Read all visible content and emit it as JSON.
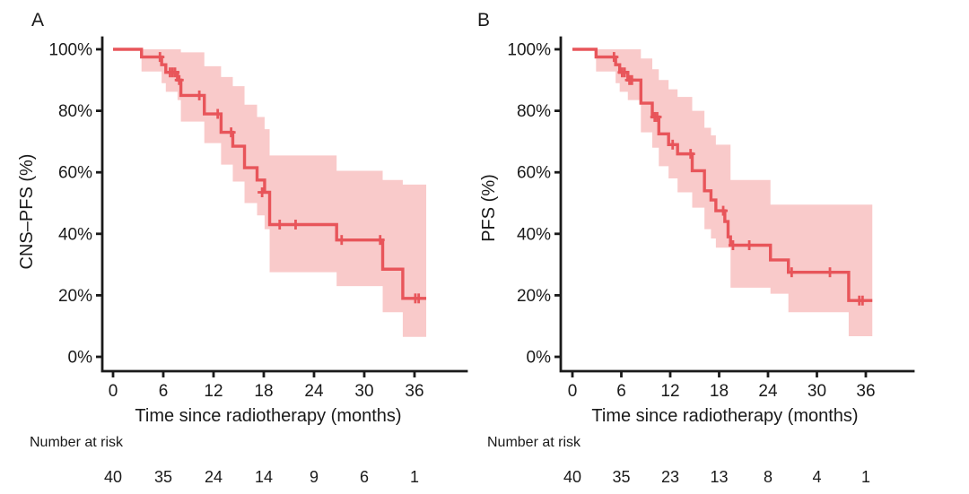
{
  "figure": {
    "background": "#ffffff",
    "text_color": "#1a1a1a",
    "axis_color": "#1a1a1a",
    "curve_color": "#e8555a",
    "band_color": "#f9caca"
  },
  "chart_data": [
    {
      "type": "line",
      "subtype": "kaplan_meier_step_with_ci_band",
      "panel": "A",
      "ylabel": "CNS–PFS (%)",
      "xlabel": "Time since radiotherapy (months)",
      "xticks": [
        0,
        6,
        12,
        18,
        24,
        30,
        36
      ],
      "yticks": [
        0,
        20,
        40,
        60,
        80,
        100
      ],
      "ytick_suffix": "%",
      "xlim": [
        0,
        42
      ],
      "ylim": [
        0,
        100
      ],
      "grid": false,
      "legend": false,
      "series": [
        {
          "name": "CNS-PFS",
          "steps": [
            [
              0,
              100
            ],
            [
              3.4,
              97.5
            ],
            [
              5.8,
              95
            ],
            [
              6.3,
              92.5
            ],
            [
              7.7,
              90
            ],
            [
              8.1,
              85
            ],
            [
              10.9,
              79
            ],
            [
              12.9,
              73
            ],
            [
              14.3,
              68.5
            ],
            [
              15.7,
              61.5
            ],
            [
              17.2,
              57.5
            ],
            [
              18.1,
              53.5
            ],
            [
              18.7,
              43
            ],
            [
              26.7,
              38
            ],
            [
              32.2,
              28.5
            ],
            [
              34.6,
              19
            ]
          ],
          "end_time": 37.4,
          "censors": [
            [
              5.6,
              97.5
            ],
            [
              6.8,
              92.5
            ],
            [
              7.1,
              92.5
            ],
            [
              7.4,
              92.5
            ],
            [
              7.9,
              90
            ],
            [
              10.3,
              85
            ],
            [
              12.5,
              79
            ],
            [
              14.1,
              73
            ],
            [
              17.8,
              53.5
            ],
            [
              19.9,
              43
            ],
            [
              21.8,
              43
            ],
            [
              27.3,
              38
            ],
            [
              31.9,
              38
            ],
            [
              36.1,
              19
            ],
            [
              36.5,
              19
            ]
          ],
          "ci_band": [
            [
              3.4,
              100,
              92.8
            ],
            [
              5.8,
              100,
              89
            ],
            [
              6.3,
              100,
              86.2
            ],
            [
              7.7,
              100,
              83.5
            ],
            [
              8.1,
              99,
              76.5
            ],
            [
              10.9,
              94.5,
              69.5
            ],
            [
              12.9,
              91,
              62.5
            ],
            [
              14.3,
              88,
              57
            ],
            [
              15.7,
              82,
              50
            ],
            [
              17.2,
              78,
              46
            ],
            [
              18.1,
              74,
              41.5
            ],
            [
              18.7,
              65.5,
              27.5
            ],
            [
              26.7,
              60.5,
              23
            ],
            [
              32.2,
              57.5,
              14.5
            ],
            [
              34.6,
              56,
              6.5
            ]
          ]
        }
      ],
      "number_at_risk": {
        "label": "Number at risk",
        "times": [
          0,
          6,
          12,
          18,
          24,
          30,
          36
        ],
        "counts": [
          40,
          35,
          24,
          14,
          9,
          6,
          1
        ]
      }
    },
    {
      "type": "line",
      "subtype": "kaplan_meier_step_with_ci_band",
      "panel": "B",
      "ylabel": "PFS (%)",
      "xlabel": "Time since radiotherapy (months)",
      "xticks": [
        0,
        6,
        12,
        18,
        24,
        30,
        36
      ],
      "yticks": [
        0,
        20,
        40,
        60,
        80,
        100
      ],
      "ytick_suffix": "%",
      "xlim": [
        0,
        42
      ],
      "ylim": [
        0,
        100
      ],
      "grid": false,
      "legend": false,
      "series": [
        {
          "name": "PFS",
          "steps": [
            [
              0,
              100
            ],
            [
              2.9,
              97.5
            ],
            [
              5.3,
              95
            ],
            [
              5.8,
              92.5
            ],
            [
              6.8,
              90
            ],
            [
              8.4,
              82.5
            ],
            [
              9.8,
              78
            ],
            [
              10.6,
              72.5
            ],
            [
              11.8,
              69
            ],
            [
              12.9,
              66
            ],
            [
              14.7,
              60.5
            ],
            [
              16.2,
              54
            ],
            [
              17,
              51
            ],
            [
              17.6,
              47.5
            ],
            [
              18.7,
              44
            ],
            [
              19.1,
              39
            ],
            [
              19.4,
              36.3
            ],
            [
              24.3,
              31.5
            ],
            [
              26.5,
              27.5
            ],
            [
              33.9,
              18.3
            ]
          ],
          "end_time": 36.8,
          "censors": [
            [
              5.1,
              97.5
            ],
            [
              6.1,
              92.5
            ],
            [
              6.4,
              92.5
            ],
            [
              7,
              90
            ],
            [
              7.3,
              90
            ],
            [
              10.1,
              78
            ],
            [
              10.4,
              78
            ],
            [
              12.3,
              69
            ],
            [
              14.5,
              66
            ],
            [
              18.5,
              47.5
            ],
            [
              19.7,
              36.3
            ],
            [
              21.7,
              36.3
            ],
            [
              26.9,
              27.5
            ],
            [
              31.6,
              27.5
            ],
            [
              35.2,
              18.3
            ],
            [
              35.6,
              18.3
            ]
          ],
          "ci_band": [
            [
              2.9,
              100,
              92.8
            ],
            [
              5.3,
              100,
              89
            ],
            [
              5.8,
              100,
              86.2
            ],
            [
              6.8,
              100,
              83.5
            ],
            [
              8.4,
              97,
              73
            ],
            [
              9.8,
              93.5,
              68
            ],
            [
              10.6,
              90,
              62
            ],
            [
              11.8,
              87,
              58
            ],
            [
              12.9,
              84.5,
              53.5
            ],
            [
              14.7,
              80,
              48.5
            ],
            [
              16.2,
              74.5,
              41.5
            ],
            [
              17,
              72,
              38.5
            ],
            [
              17.6,
              69,
              35.5
            ],
            [
              19.4,
              57.5,
              22.5
            ],
            [
              24.3,
              49.5,
              20.5
            ],
            [
              26.5,
              49.5,
              14.5
            ],
            [
              33.9,
              49.5,
              6.7
            ]
          ]
        }
      ],
      "number_at_risk": {
        "label": "Number at risk",
        "times": [
          0,
          6,
          12,
          18,
          24,
          30,
          36
        ],
        "counts": [
          40,
          35,
          23,
          13,
          8,
          4,
          1
        ]
      }
    }
  ]
}
